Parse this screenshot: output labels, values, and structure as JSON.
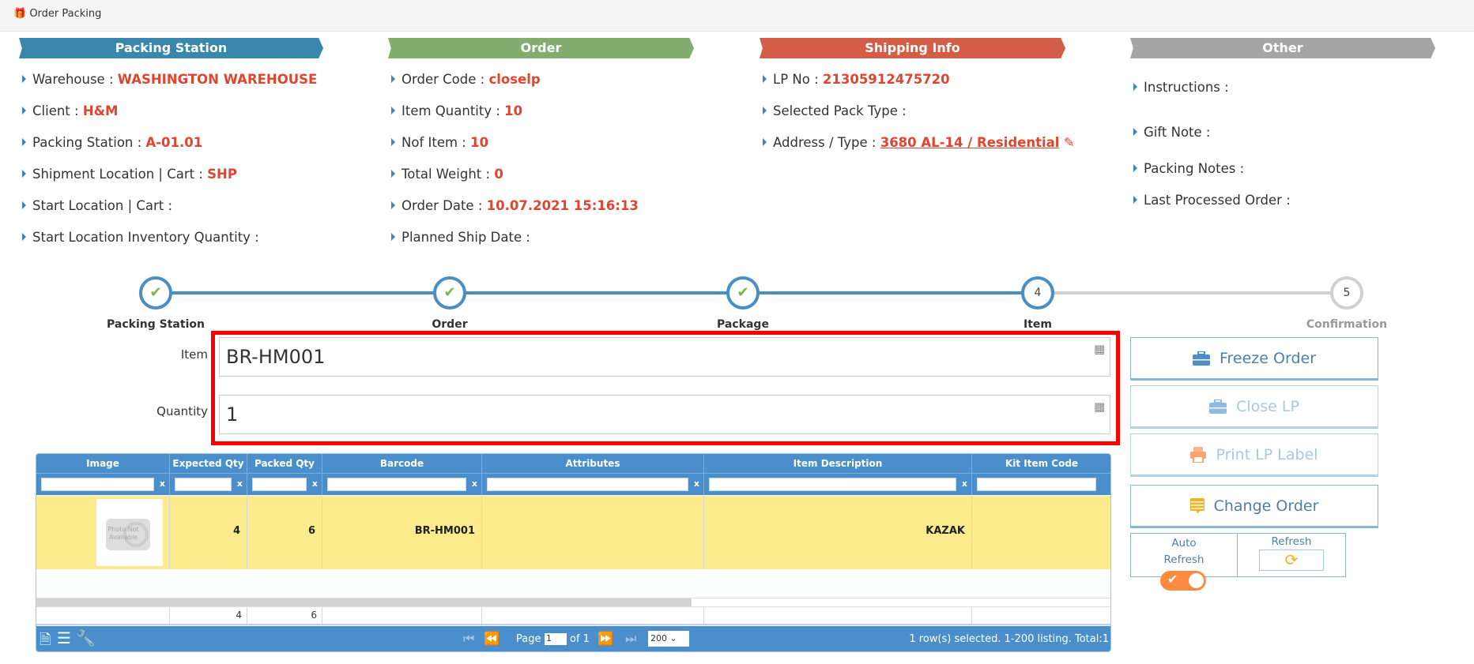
{
  "app": {
    "title": "Order Packing",
    "icon": "gift-icon"
  },
  "sections": [
    {
      "title": "Packing Station",
      "color": "#3a87ad",
      "fields": [
        {
          "label": "Warehouse :",
          "value": "WASHINGTON WAREHOUSE"
        },
        {
          "label": "Client :",
          "value": "H&M"
        },
        {
          "label": "Packing Station :",
          "value": "A-01.01"
        },
        {
          "label": "Shipment Location | Cart :",
          "value": "SHP"
        },
        {
          "label": "Start Location | Cart :",
          "value": ""
        },
        {
          "label": "Start Location Inventory Quantity :",
          "value": ""
        }
      ]
    },
    {
      "title": "Order",
      "color": "#82ad6f",
      "fields": [
        {
          "label": "Order Code :",
          "value": "closelp"
        },
        {
          "label": "Item Quantity :",
          "value": "10"
        },
        {
          "label": "Nof Item :",
          "value": "10"
        },
        {
          "label": "Total Weight :",
          "value": "0"
        },
        {
          "label": "Order Date :",
          "value": "10.07.2021 15:16:13"
        },
        {
          "label": "Planned Ship Date :",
          "value": ""
        }
      ]
    },
    {
      "title": "Shipping Info",
      "color": "#d45d48",
      "fields": [
        {
          "label": "LP No :",
          "value": "21305912475720"
        },
        {
          "label": "Selected Pack Type :",
          "value": ""
        },
        {
          "label": "Address / Type :",
          "value": "3680 AL-14 / Residential",
          "link": true
        }
      ]
    },
    {
      "title": "Other",
      "color": "#a5a5a5",
      "fields": [
        {
          "label": "Instructions :",
          "value": ""
        },
        {
          "label": "Gift Note :",
          "value": ""
        },
        {
          "label": "Packing Notes :",
          "value": ""
        },
        {
          "label": "Last Processed Order :",
          "value": ""
        }
      ]
    }
  ],
  "steps": [
    {
      "label": "Packing Station",
      "state": "done"
    },
    {
      "label": "Order",
      "state": "done"
    },
    {
      "label": "Package",
      "state": "done"
    },
    {
      "label": "Item",
      "state": "current",
      "number": "4"
    },
    {
      "label": "Confirmation",
      "state": "pending",
      "number": "5"
    }
  ],
  "form": {
    "item_label": "Item",
    "item_value": "BR-HM001",
    "quantity_label": "Quantity",
    "quantity_value": "1"
  },
  "actions": {
    "freeze": "Freeze Order",
    "close_lp": "Close LP",
    "print": "Print LP Label",
    "change": "Change Order",
    "auto_refresh": "Auto Refresh",
    "auto_refresh_on": true,
    "refresh": "Refresh"
  },
  "grid": {
    "columns": [
      "Image",
      "Expected Qty",
      "Packed Qty",
      "Barcode",
      "Attributes",
      "Item Description",
      "Kit Item Code"
    ],
    "filter_clear": "x",
    "rows": [
      {
        "image": "Photo Not Available",
        "expected": "4",
        "packed": "6",
        "barcode": "BR-HM001",
        "attributes": "",
        "description": "KAZAK",
        "kit": ""
      }
    ],
    "totals": {
      "expected": "4",
      "packed": "6"
    },
    "pager": {
      "page_label": "Page",
      "page": "1",
      "of_label": "of 1",
      "page_size": "200",
      "status": "1 row(s) selected. 1-200 listing. Total:1"
    },
    "selected_row_color": "#fbeb8c"
  }
}
